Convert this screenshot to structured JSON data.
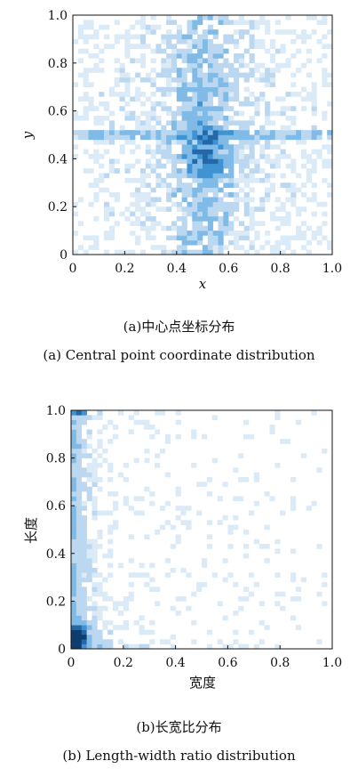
{
  "chart_data": [
    {
      "type": "heatmap",
      "title": "",
      "xlabel": "x",
      "ylabel": "y",
      "xlim": [
        0,
        1
      ],
      "ylim": [
        0,
        1
      ],
      "xticks": [
        "0",
        "0.2",
        "0.4",
        "0.6",
        "0.8",
        "1.0"
      ],
      "yticks": [
        "0",
        "0.2",
        "0.4",
        "0.6",
        "0.8",
        "1.0"
      ],
      "grid": false,
      "colors": [
        "#dbeaf7",
        "#bcd8f0",
        "#7fbbe6",
        "#3f93d2",
        "#2468a8"
      ],
      "description_points": {
        "dense_horizontal_band": {
          "y": 0.5,
          "x_range": [
            0.0,
            1.0
          ]
        },
        "dense_vertical_band": {
          "x": 0.5,
          "y_range": [
            0.0,
            1.0
          ]
        },
        "peak": {
          "x": 0.5,
          "y": 0.45
        }
      },
      "caption_cn": "(a)中心点坐标分布",
      "caption_en": "(a) Central point coordinate distribution"
    },
    {
      "type": "heatmap",
      "title": "",
      "xlabel": "宽度",
      "ylabel": "长度",
      "xlim": [
        0,
        1
      ],
      "ylim": [
        0,
        1
      ],
      "xticks": [
        "0",
        "0.2",
        "0.4",
        "0.6",
        "0.8",
        "1.0"
      ],
      "yticks": [
        "0",
        "0.2",
        "0.4",
        "0.6",
        "0.8",
        "1.0"
      ],
      "grid": false,
      "colors": [
        "#dbeaf7",
        "#bcd8f0",
        "#7fbbe6",
        "#3f93d2",
        "#2468a8",
        "#0d3d6e"
      ],
      "description_points": {
        "dense_column": {
          "x_range": [
            0.0,
            0.1
          ],
          "y_range": [
            0.0,
            1.0
          ]
        },
        "dense_row": {
          "y_range": [
            0.0,
            0.15
          ],
          "x_range": [
            0.0,
            0.5
          ]
        },
        "peak": {
          "x": 0.03,
          "y": 0.05
        },
        "corner_cluster": {
          "x": 0.03,
          "y": 0.99
        }
      },
      "caption_cn": "(b)长宽比分布",
      "caption_en": "(b) Length-width ratio distribution"
    }
  ]
}
